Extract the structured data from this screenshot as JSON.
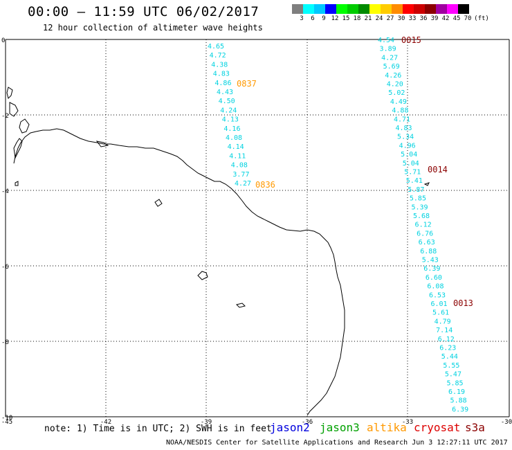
{
  "header": {
    "title": "00:00 – 11:59 UTC 06/02/2017",
    "subtitle": "12 hour collection of altimeter wave heights"
  },
  "color_scale": {
    "unit": "(ft)",
    "bins": [
      {
        "label": "3",
        "color": "#7f7f7f"
      },
      {
        "label": "6",
        "color": "#00ffff"
      },
      {
        "label": "9",
        "color": "#00c8ff"
      },
      {
        "label": "12",
        "color": "#0000ff"
      },
      {
        "label": "15",
        "color": "#00ff00"
      },
      {
        "label": "18",
        "color": "#00cc00"
      },
      {
        "label": "21",
        "color": "#008a00"
      },
      {
        "label": "24",
        "color": "#ffff00"
      },
      {
        "label": "27",
        "color": "#ffcc00"
      },
      {
        "label": "30",
        "color": "#ff8c00"
      },
      {
        "label": "33",
        "color": "#ff0000"
      },
      {
        "label": "36",
        "color": "#cc0000"
      },
      {
        "label": "39",
        "color": "#8b0000"
      },
      {
        "label": "42",
        "color": "#a000a0"
      },
      {
        "label": "45",
        "color": "#ff00ff"
      },
      {
        "label": "70",
        "color": "#000000"
      }
    ]
  },
  "axes": {
    "x_ticks": [
      "-45",
      "-42",
      "-39",
      "-36",
      "-33",
      "-30"
    ],
    "y_ticks": [
      "0",
      "-2",
      "-4",
      "-6",
      "-8",
      "-10"
    ]
  },
  "tracks": [
    {
      "color": "#00d2e0",
      "time_labels": [
        {
          "text": "0837",
          "color": "#ff9900",
          "after_index": 4
        },
        {
          "text": "0836",
          "color": "#ff9900",
          "after_index": 18
        }
      ],
      "values": [
        "4.65",
        "4.72",
        "4.38",
        "4.83",
        "4.86",
        "4.43",
        "4.50",
        "4.24",
        "4.13",
        "4.16",
        "4.08",
        "4.14",
        "4.11",
        "4.08",
        "3.77",
        "4.27"
      ]
    },
    {
      "color": "#00d2e0",
      "time_labels": [
        {
          "text": "0015",
          "color": "#8b0000",
          "after_index": 0
        },
        {
          "text": "0014",
          "color": "#8b0000",
          "after_index": 16
        },
        {
          "text": "0013",
          "color": "#8b0000",
          "after_index": 34
        }
      ],
      "values": [
        "4.54",
        "3.89",
        "4.27",
        "5.69",
        "4.26",
        "4.20",
        "5.02",
        "4.49",
        "4.88",
        "4.71",
        "4.83",
        "5.34",
        "4.96",
        "5.04",
        "5.04",
        "5.71",
        "5.41",
        "5.87",
        "5.85",
        "5.39",
        "5.68",
        "6.12",
        "6.76",
        "6.63",
        "6.88",
        "5.43",
        "6.39",
        "6.60",
        "6.08",
        "6.53",
        "6.01",
        "5.61",
        "4.79",
        "7.14",
        "6.12",
        "6.23",
        "5.44",
        "5.55",
        "5.47",
        "5.85",
        "6.19",
        "5.88",
        "6.39"
      ]
    }
  ],
  "note": "note: 1) Time is in UTC; 2) SWH is in feet",
  "legend": [
    {
      "label": "jason2",
      "color": "#0000dd"
    },
    {
      "label": "jason3",
      "color": "#00a000"
    },
    {
      "label": "altika",
      "color": "#ff9900"
    },
    {
      "label": "cryosat",
      "color": "#dd0000"
    },
    {
      "label": "s3a",
      "color": "#8b0000"
    }
  ],
  "credit": "NOAA/NESDIS Center for Satellite Applications and Research    Jun  3 12:27:11 UTC 2017"
}
